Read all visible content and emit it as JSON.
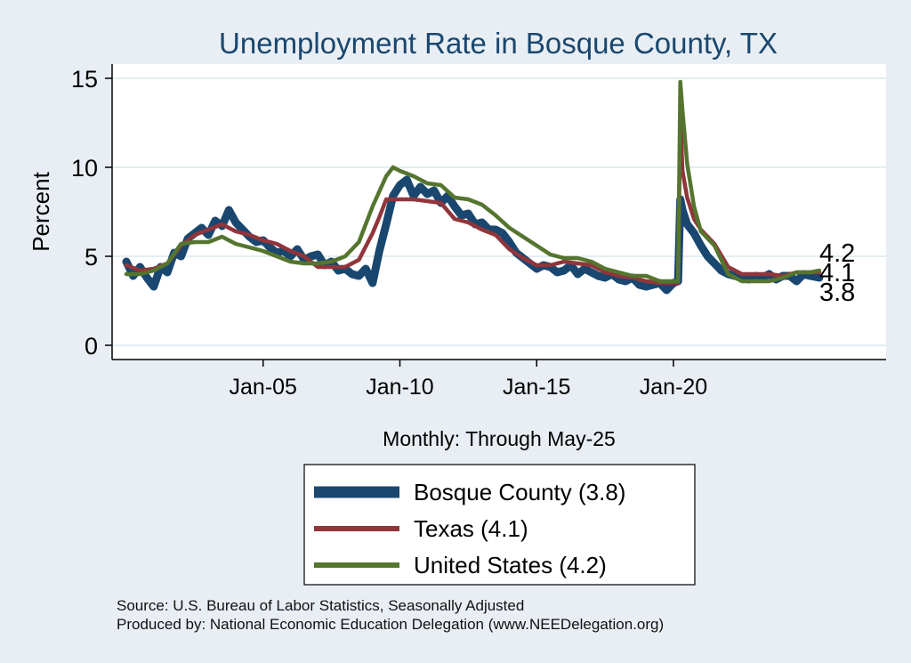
{
  "chart_data": {
    "type": "line",
    "title": "Unemployment Rate in Bosque  County, TX",
    "ylabel": "Percent",
    "xlabel": "Monthly: Through May-25",
    "ylim": [
      0,
      16
    ],
    "yticks": [
      0,
      5,
      10,
      15
    ],
    "xticks": [
      {
        "value": 2005,
        "label": "Jan-05"
      },
      {
        "value": 2010,
        "label": "Jan-10"
      },
      {
        "value": 2015,
        "label": "Jan-15"
      },
      {
        "value": 2020,
        "label": "Jan-20"
      }
    ],
    "xlim": [
      2000,
      2029.7
    ],
    "grid": true,
    "legend_position": "bottom",
    "series": [
      {
        "name": "Bosque  County (3.8)",
        "color": "#1a476f",
        "end_label": "3.8",
        "x": [
          2000.0,
          2000.25,
          2000.5,
          2000.75,
          2001.0,
          2001.25,
          2001.5,
          2001.75,
          2002.0,
          2002.25,
          2002.5,
          2002.75,
          2003.0,
          2003.25,
          2003.5,
          2003.75,
          2004.0,
          2004.25,
          2004.5,
          2004.75,
          2005.0,
          2005.25,
          2005.5,
          2005.75,
          2006.0,
          2006.25,
          2006.5,
          2006.75,
          2007.0,
          2007.25,
          2007.5,
          2007.75,
          2008.0,
          2008.25,
          2008.5,
          2008.75,
          2009.0,
          2009.25,
          2009.5,
          2009.75,
          2010.0,
          2010.25,
          2010.5,
          2010.75,
          2011.0,
          2011.25,
          2011.5,
          2011.75,
          2012.0,
          2012.25,
          2012.5,
          2012.75,
          2013.0,
          2013.25,
          2013.5,
          2013.75,
          2014.0,
          2014.25,
          2014.5,
          2014.75,
          2015.0,
          2015.25,
          2015.5,
          2015.75,
          2016.0,
          2016.25,
          2016.5,
          2016.75,
          2017.0,
          2017.25,
          2017.5,
          2017.75,
          2018.0,
          2018.25,
          2018.5,
          2018.75,
          2019.0,
          2019.25,
          2019.5,
          2019.75,
          2020.0,
          2020.17,
          2020.25,
          2020.33,
          2020.5,
          2020.75,
          2021.0,
          2021.25,
          2021.5,
          2021.75,
          2022.0,
          2022.25,
          2022.5,
          2022.75,
          2023.0,
          2023.25,
          2023.5,
          2023.75,
          2024.0,
          2024.25,
          2024.5,
          2024.75,
          2025.0,
          2025.33
        ],
        "values": [
          4.7,
          3.9,
          4.4,
          3.8,
          3.3,
          4.4,
          4.1,
          5.2,
          5.0,
          6.0,
          6.3,
          6.6,
          6.2,
          7.0,
          6.7,
          7.6,
          6.9,
          6.5,
          6.1,
          5.8,
          5.9,
          5.5,
          5.2,
          5.3,
          5.0,
          5.4,
          4.8,
          5.0,
          5.1,
          4.5,
          4.7,
          4.2,
          4.3,
          4.0,
          3.9,
          4.3,
          3.5,
          5.3,
          6.8,
          8.4,
          9.0,
          9.3,
          8.4,
          8.9,
          8.5,
          8.7,
          8.0,
          8.4,
          7.8,
          7.3,
          7.4,
          6.8,
          6.9,
          6.5,
          6.5,
          6.3,
          5.8,
          5.2,
          4.9,
          4.6,
          4.3,
          4.5,
          4.4,
          4.1,
          4.2,
          4.5,
          4.0,
          4.3,
          4.1,
          3.9,
          3.8,
          4.0,
          3.7,
          3.6,
          3.8,
          3.4,
          3.3,
          3.4,
          3.5,
          3.1,
          3.5,
          3.6,
          8.2,
          7.6,
          6.8,
          6.3,
          5.6,
          5.0,
          4.6,
          4.2,
          4.0,
          3.9,
          3.8,
          3.7,
          3.9,
          3.8,
          4.0,
          3.7,
          3.9,
          3.9,
          3.6,
          4.0,
          3.9,
          3.8
        ]
      },
      {
        "name": "Texas (4.1)",
        "color": "#90353b",
        "end_label": "4.1",
        "x": [
          2000.0,
          2000.5,
          2001.0,
          2001.5,
          2002.0,
          2002.5,
          2003.0,
          2003.5,
          2004.0,
          2004.5,
          2005.0,
          2005.5,
          2006.0,
          2006.5,
          2007.0,
          2007.5,
          2008.0,
          2008.5,
          2009.0,
          2009.25,
          2009.5,
          2009.75,
          2010.0,
          2010.5,
          2011.0,
          2011.5,
          2012.0,
          2012.5,
          2013.0,
          2013.5,
          2014.0,
          2014.5,
          2015.0,
          2015.5,
          2016.0,
          2016.5,
          2017.0,
          2017.5,
          2018.0,
          2018.5,
          2019.0,
          2019.5,
          2020.0,
          2020.17,
          2020.25,
          2020.33,
          2020.5,
          2020.75,
          2021.0,
          2021.5,
          2022.0,
          2022.5,
          2023.0,
          2023.5,
          2024.0,
          2024.5,
          2025.0,
          2025.33
        ],
        "values": [
          4.5,
          4.2,
          4.3,
          4.6,
          5.6,
          6.2,
          6.5,
          6.8,
          6.4,
          6.2,
          5.9,
          5.7,
          5.3,
          5.0,
          4.4,
          4.4,
          4.4,
          4.8,
          6.3,
          7.2,
          8.2,
          8.2,
          8.2,
          8.2,
          8.1,
          8.0,
          7.1,
          6.9,
          6.5,
          6.2,
          5.4,
          4.9,
          4.5,
          4.5,
          4.7,
          4.6,
          4.5,
          4.1,
          3.9,
          3.8,
          3.6,
          3.5,
          3.5,
          3.5,
          12.9,
          9.8,
          8.3,
          7.1,
          6.5,
          5.7,
          4.4,
          4.0,
          4.0,
          4.0,
          3.9,
          4.1,
          4.1,
          4.1
        ]
      },
      {
        "name": "United States (4.2)",
        "color": "#55752f",
        "end_label": "4.2",
        "x": [
          2000.0,
          2000.5,
          2001.0,
          2001.5,
          2002.0,
          2002.5,
          2003.0,
          2003.5,
          2004.0,
          2004.5,
          2005.0,
          2005.5,
          2006.0,
          2006.5,
          2007.0,
          2007.5,
          2008.0,
          2008.5,
          2009.0,
          2009.5,
          2009.75,
          2010.0,
          2010.5,
          2011.0,
          2011.5,
          2012.0,
          2012.5,
          2013.0,
          2013.5,
          2014.0,
          2014.5,
          2015.0,
          2015.5,
          2016.0,
          2016.5,
          2017.0,
          2017.5,
          2018.0,
          2018.5,
          2019.0,
          2019.5,
          2020.0,
          2020.17,
          2020.25,
          2020.33,
          2020.5,
          2020.75,
          2021.0,
          2021.5,
          2022.0,
          2022.5,
          2023.0,
          2023.5,
          2024.0,
          2024.5,
          2025.0,
          2025.33
        ],
        "values": [
          4.0,
          4.0,
          4.2,
          4.6,
          5.7,
          5.8,
          5.8,
          6.1,
          5.7,
          5.5,
          5.3,
          5.0,
          4.7,
          4.6,
          4.6,
          4.7,
          5.0,
          5.8,
          7.8,
          9.5,
          10.0,
          9.8,
          9.5,
          9.1,
          9.0,
          8.3,
          8.2,
          7.9,
          7.3,
          6.6,
          6.1,
          5.6,
          5.1,
          4.9,
          4.9,
          4.7,
          4.3,
          4.1,
          3.9,
          3.9,
          3.6,
          3.6,
          3.6,
          14.8,
          13.2,
          10.2,
          7.8,
          6.4,
          5.6,
          4.0,
          3.6,
          3.6,
          3.6,
          3.8,
          4.1,
          4.1,
          4.2
        ]
      }
    ]
  },
  "footer": {
    "source": "Source: U.S. Bureau of Labor Statistics, Seasonally Adjusted",
    "producer": "Produced by: National Economic Education Delegation (www.NEEDelegation.org)"
  }
}
